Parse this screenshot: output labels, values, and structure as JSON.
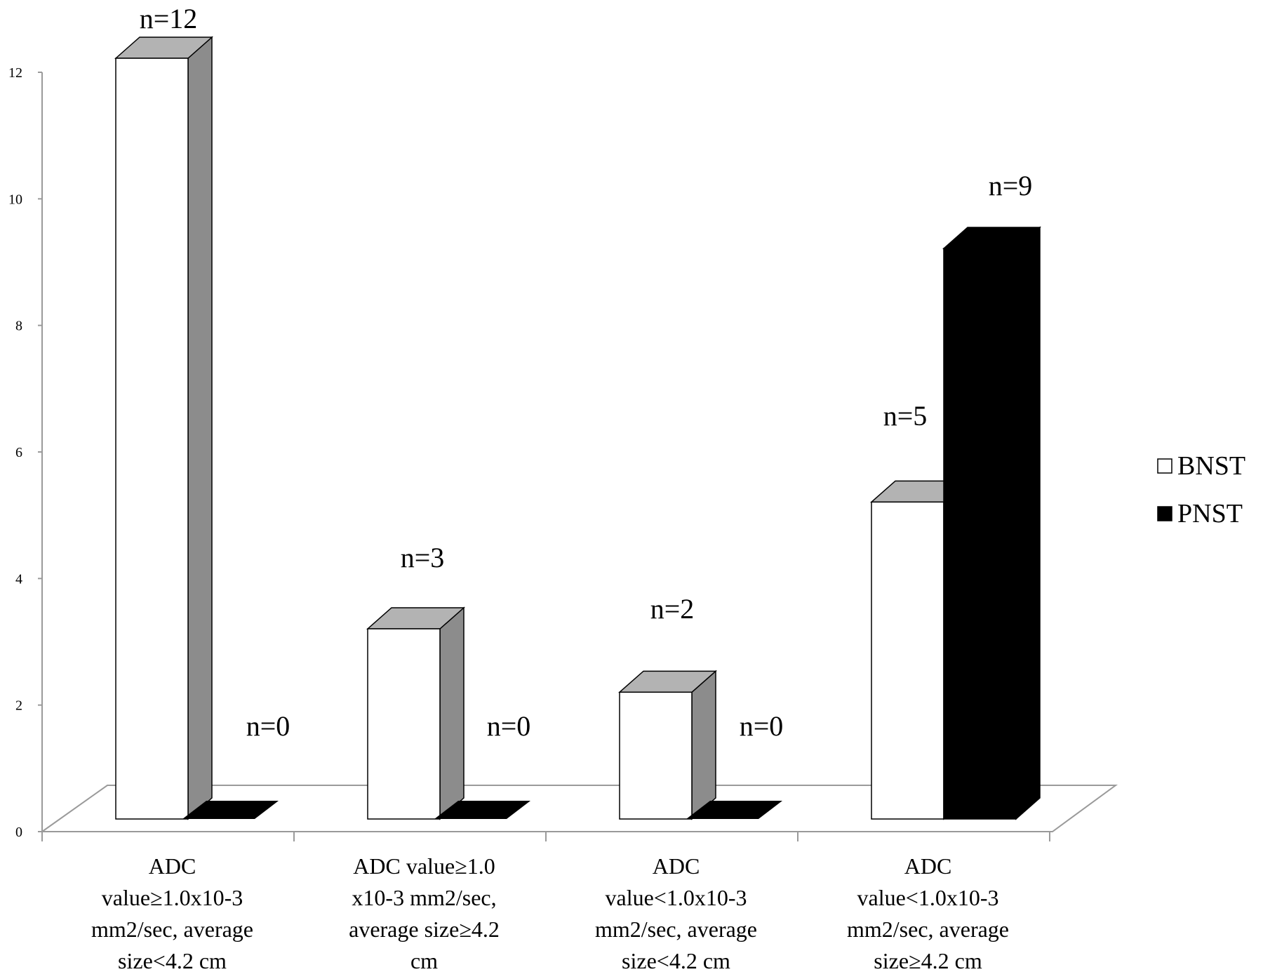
{
  "chart_data": {
    "type": "bar",
    "title": "",
    "xlabel": "",
    "ylabel": "",
    "ylim": [
      0,
      12
    ],
    "yticks": [
      0,
      2,
      4,
      6,
      8,
      10,
      12
    ],
    "categories": [
      [
        "ADC",
        "value≥1.0x10-3",
        "mm2/sec, average",
        "size<4.2 cm"
      ],
      [
        "ADC value≥1.0",
        "x10-3 mm2/sec,",
        "average size≥4.2",
        "cm"
      ],
      [
        "ADC",
        "value<1.0x10-3",
        "mm2/sec, average",
        "size<4.2 cm"
      ],
      [
        "ADC",
        "value<1.0x10-3",
        "mm2/sec, average",
        "size≥4.2 cm"
      ]
    ],
    "series": [
      {
        "name": "BNST",
        "values": [
          12,
          3,
          2,
          5
        ],
        "data_labels": [
          "n=12",
          "n=3",
          "n=2",
          "n=5"
        ],
        "front_color": "#ffffff",
        "side_color": "#8c8c8c",
        "top_color": "#b3b3b3"
      },
      {
        "name": "PNST",
        "values": [
          0,
          0,
          0,
          9
        ],
        "data_labels": [
          "n=0",
          "n=0",
          "n=0",
          "n=9"
        ],
        "front_color": "#000000",
        "side_color": "#000000",
        "top_color": "#000000"
      }
    ],
    "grid": false,
    "legend_position": "right",
    "style": "3d-bar"
  }
}
